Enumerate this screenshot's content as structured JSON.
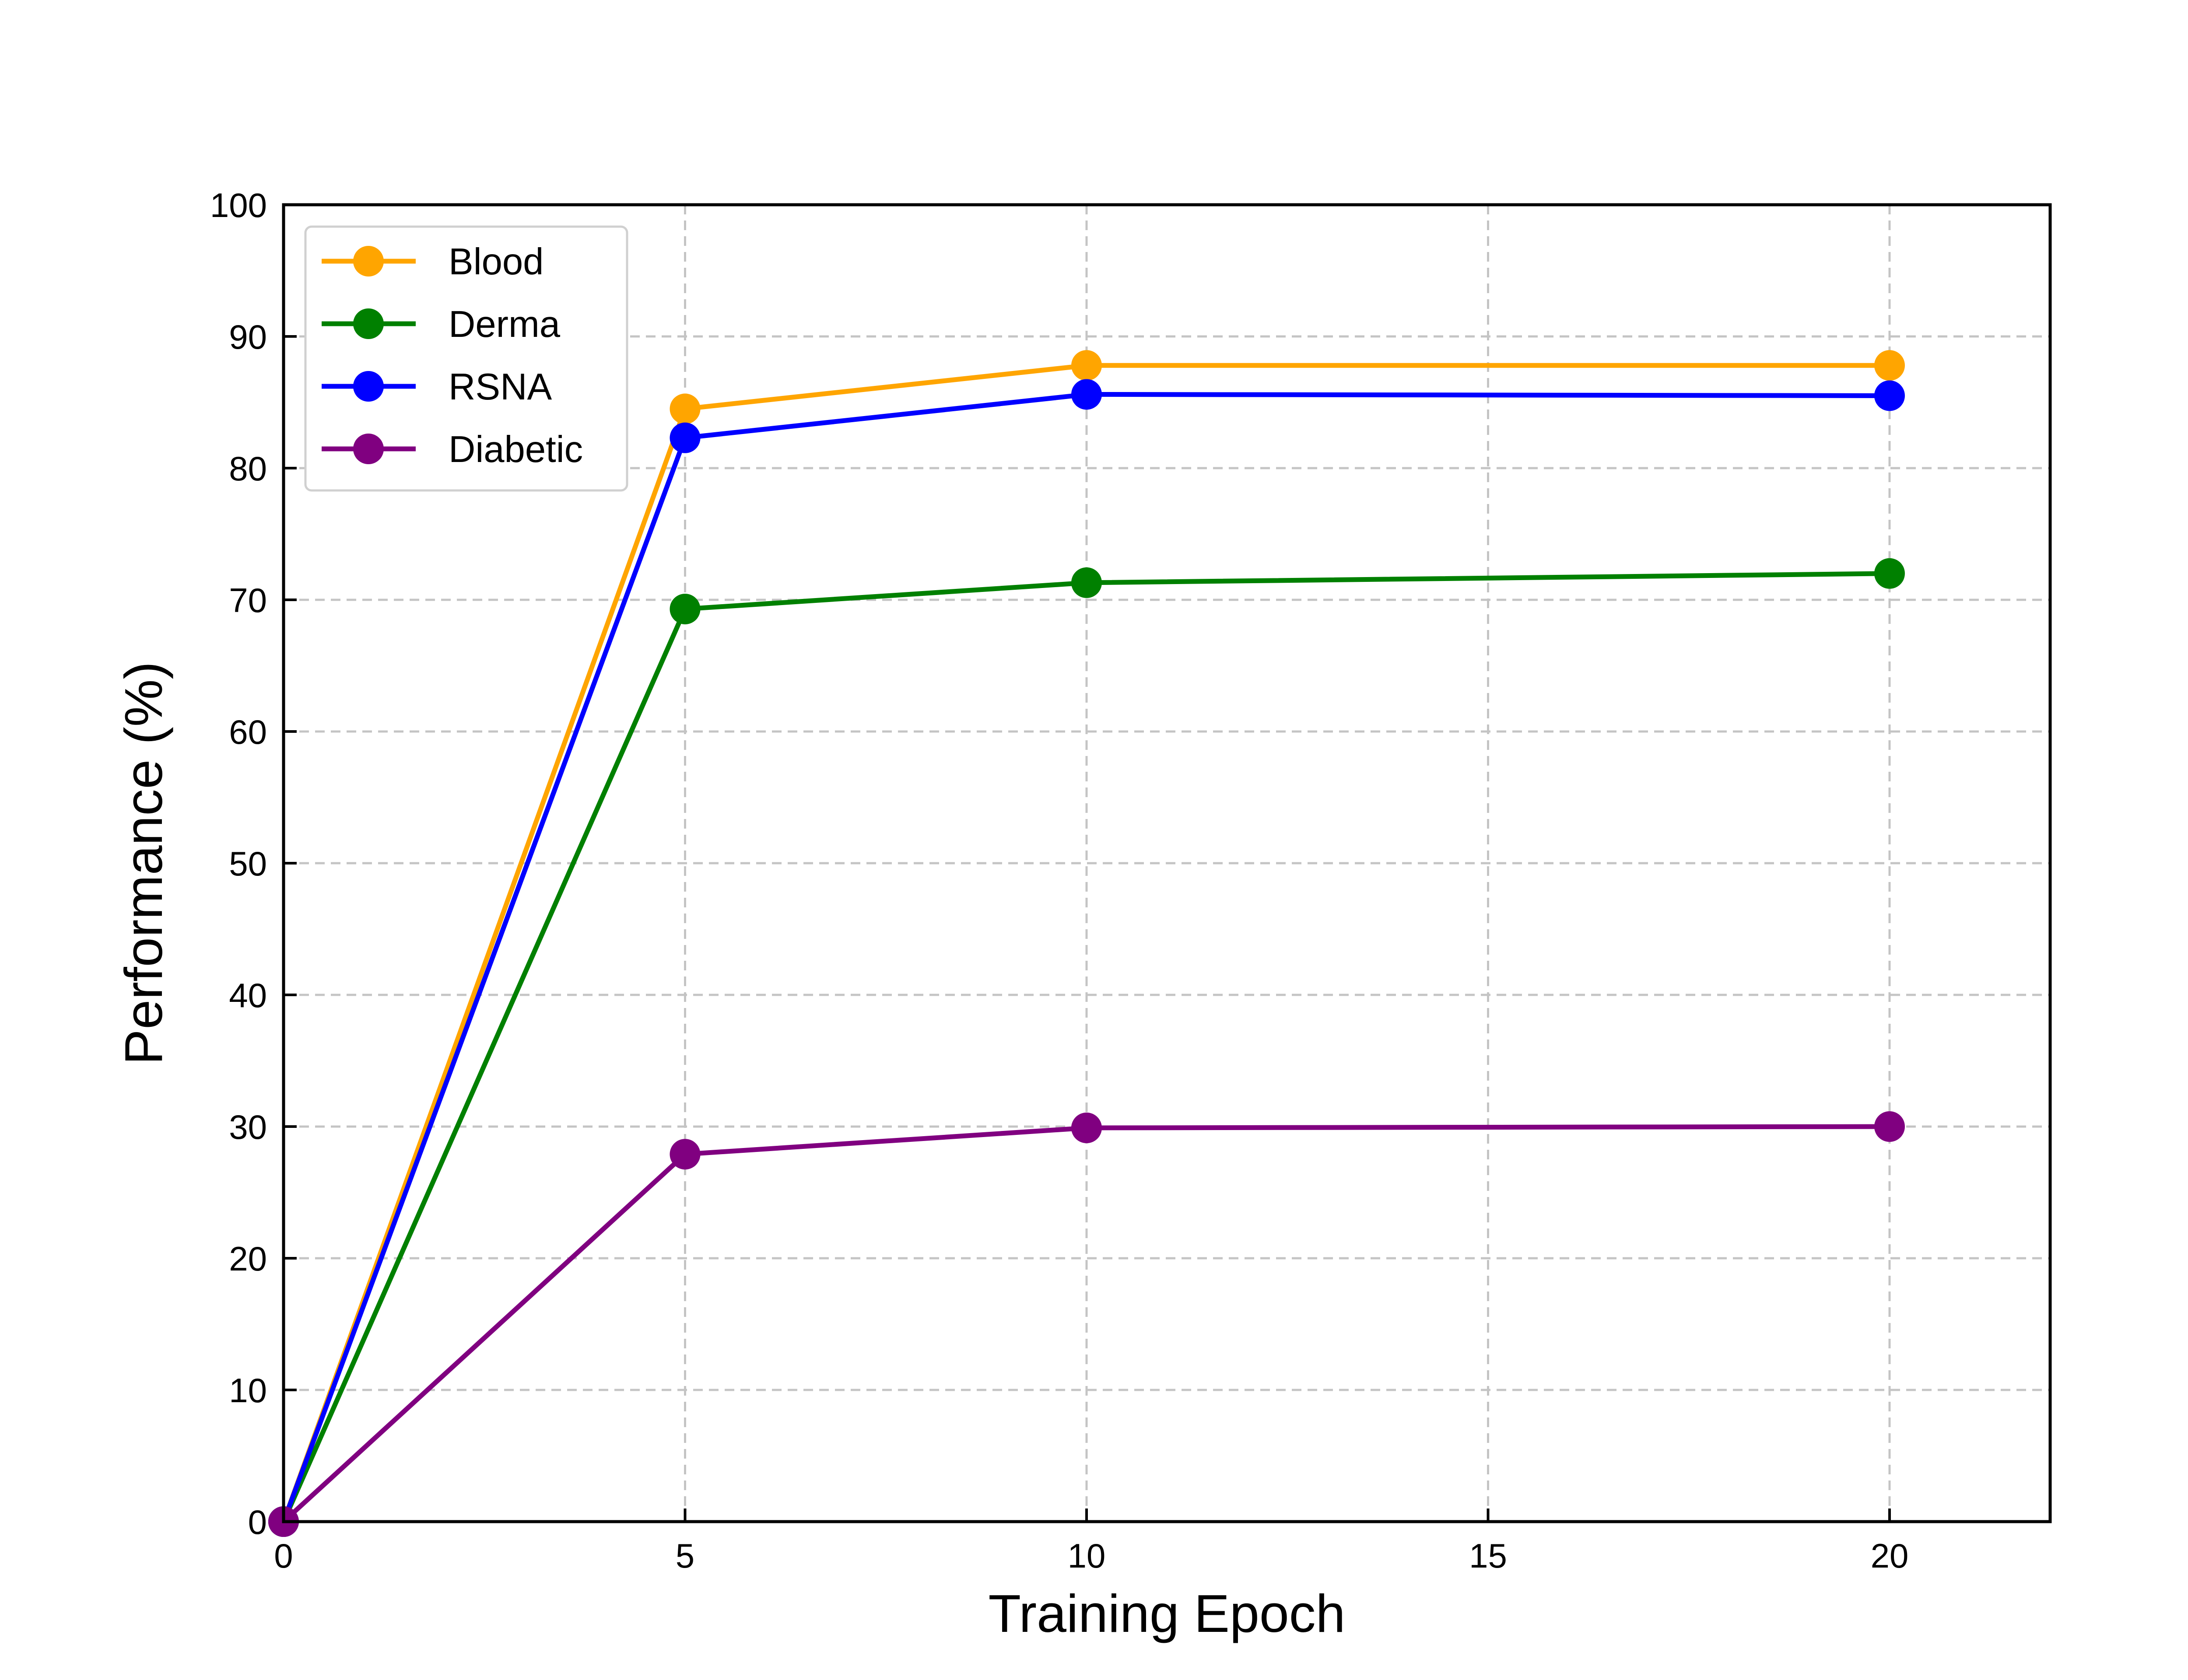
{
  "chart_data": {
    "type": "line",
    "title": "",
    "xlabel": "Training Epoch",
    "ylabel": "Performance (%)",
    "xlim": [
      0,
      22
    ],
    "ylim": [
      0,
      100
    ],
    "xticks": [
      0,
      5,
      10,
      15,
      20
    ],
    "yticks": [
      0,
      10,
      20,
      30,
      40,
      50,
      60,
      70,
      80,
      90,
      100
    ],
    "grid": true,
    "legend_position": "top-left",
    "x": [
      0,
      5,
      10,
      20
    ],
    "series": [
      {
        "name": "Blood",
        "color": "#ffa500",
        "values": [
          0,
          84.5,
          87.8,
          87.8
        ]
      },
      {
        "name": "Derma",
        "color": "#008000",
        "values": [
          0,
          69.3,
          71.3,
          72.0
        ]
      },
      {
        "name": "RSNA",
        "color": "#0000ff",
        "values": [
          0,
          82.3,
          85.6,
          85.5
        ]
      },
      {
        "name": "Diabetic",
        "color": "#800080",
        "values": [
          0,
          27.9,
          29.9,
          30.0
        ]
      }
    ]
  }
}
